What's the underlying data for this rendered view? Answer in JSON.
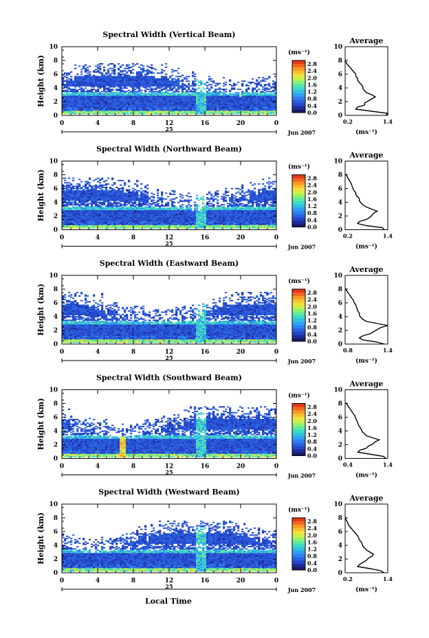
{
  "chart_data": {
    "type": "heatmap",
    "x_axis": {
      "range": [
        0,
        24
      ],
      "ticks": [
        "0",
        "4",
        "8",
        "12",
        "16",
        "20",
        "0"
      ],
      "day_label": "25",
      "date_label": "Jun 2007",
      "label": "Local Time"
    },
    "y_axis": {
      "label": "Height (km)",
      "range": [
        0,
        10
      ],
      "ticks": [
        "0",
        "2",
        "4",
        "6",
        "8",
        "10"
      ]
    },
    "colorbar": {
      "unit": "(ms⁻¹)",
      "ticks": [
        "0.0",
        "0.4",
        "0.8",
        "1.2",
        "1.6",
        "2.0",
        "2.4",
        "2.8"
      ],
      "range": [
        0,
        3.0
      ]
    },
    "average_profile": {
      "title": "Average",
      "xlabel": "(ms⁻¹)",
      "yticks": [
        "0",
        "2",
        "4",
        "6",
        "8",
        "10"
      ]
    },
    "panels": [
      {
        "title": "Spectral Width (Vertical Beam)",
        "profile_xticks": [
          "0.2",
          "1.4"
        ],
        "profile_xlim": [
          0.2,
          1.4
        ],
        "profile": [
          [
            0.0,
            1.35
          ],
          [
            0.3,
            1.4
          ],
          [
            0.6,
            0.95
          ],
          [
            0.9,
            0.5
          ],
          [
            1.2,
            0.55
          ],
          [
            1.5,
            0.75
          ],
          [
            1.8,
            0.75
          ],
          [
            2.1,
            0.85
          ],
          [
            2.4,
            0.95
          ],
          [
            2.7,
            1.05
          ],
          [
            3.0,
            0.95
          ],
          [
            3.3,
            0.8
          ],
          [
            3.6,
            0.75
          ],
          [
            3.9,
            0.7
          ],
          [
            4.2,
            0.7
          ],
          [
            4.5,
            0.65
          ],
          [
            4.8,
            0.6
          ],
          [
            5.1,
            0.55
          ],
          [
            5.4,
            0.55
          ],
          [
            5.7,
            0.5
          ],
          [
            6.0,
            0.5
          ],
          [
            6.3,
            0.45
          ],
          [
            6.6,
            0.4
          ],
          [
            6.9,
            0.35
          ],
          [
            7.2,
            0.3
          ],
          [
            7.5,
            0.25
          ],
          [
            7.8,
            0.22
          ],
          [
            8.1,
            0.2
          ]
        ]
      },
      {
        "title": "Spectral Width (Northward Beam)",
        "profile_xticks": [
          "0.2",
          "1.4"
        ],
        "profile_xlim": [
          0.2,
          1.4
        ],
        "profile": [
          [
            0.0,
            1.3
          ],
          [
            0.3,
            1.25
          ],
          [
            0.6,
            0.8
          ],
          [
            0.9,
            0.55
          ],
          [
            1.2,
            0.6
          ],
          [
            1.5,
            0.8
          ],
          [
            1.8,
            0.9
          ],
          [
            2.1,
            0.95
          ],
          [
            2.4,
            1.0
          ],
          [
            2.7,
            1.1
          ],
          [
            3.0,
            0.95
          ],
          [
            3.3,
            0.8
          ],
          [
            3.6,
            0.7
          ],
          [
            3.9,
            0.65
          ],
          [
            4.2,
            0.6
          ],
          [
            4.5,
            0.6
          ],
          [
            4.8,
            0.55
          ],
          [
            5.1,
            0.5
          ],
          [
            5.4,
            0.5
          ],
          [
            5.7,
            0.45
          ],
          [
            6.0,
            0.42
          ],
          [
            6.3,
            0.4
          ],
          [
            6.6,
            0.38
          ],
          [
            6.9,
            0.35
          ],
          [
            7.2,
            0.32
          ],
          [
            7.5,
            0.28
          ],
          [
            7.8,
            0.25
          ],
          [
            8.1,
            0.22
          ]
        ]
      },
      {
        "title": "Spectral Width (Eastward Beam)",
        "profile_xticks": [
          "0.8",
          "1.4"
        ],
        "profile_xlim": [
          0.8,
          1.4
        ],
        "profile": [
          [
            0.0,
            1.35
          ],
          [
            0.3,
            1.25
          ],
          [
            0.6,
            1.05
          ],
          [
            0.9,
            1.0
          ],
          [
            1.2,
            1.05
          ],
          [
            1.5,
            1.15
          ],
          [
            1.8,
            1.2
          ],
          [
            2.1,
            1.25
          ],
          [
            2.4,
            1.3
          ],
          [
            2.7,
            1.4
          ],
          [
            3.0,
            1.25
          ],
          [
            3.3,
            1.1
          ],
          [
            3.6,
            1.05
          ],
          [
            3.9,
            1.02
          ],
          [
            4.2,
            1.0
          ],
          [
            4.5,
            1.0
          ],
          [
            4.8,
            0.98
          ],
          [
            5.1,
            0.97
          ],
          [
            5.4,
            0.96
          ],
          [
            5.7,
            0.95
          ],
          [
            6.0,
            0.93
          ],
          [
            6.3,
            0.92
          ],
          [
            6.6,
            0.9
          ],
          [
            6.9,
            0.88
          ],
          [
            7.2,
            0.86
          ],
          [
            7.5,
            0.84
          ],
          [
            7.8,
            0.82
          ],
          [
            8.1,
            0.81
          ]
        ]
      },
      {
        "title": "Spectral Width (Southward Beam)",
        "profile_xticks": [
          "0.4",
          "1.4"
        ],
        "profile_xlim": [
          0.4,
          1.4
        ],
        "profile": [
          [
            0.0,
            1.35
          ],
          [
            0.3,
            1.3
          ],
          [
            0.6,
            1.0
          ],
          [
            0.9,
            0.7
          ],
          [
            1.2,
            0.75
          ],
          [
            1.5,
            0.9
          ],
          [
            1.8,
            0.95
          ],
          [
            2.1,
            1.05
          ],
          [
            2.4,
            1.1
          ],
          [
            2.7,
            1.2
          ],
          [
            3.0,
            1.05
          ],
          [
            3.3,
            0.9
          ],
          [
            3.6,
            0.85
          ],
          [
            3.9,
            0.8
          ],
          [
            4.2,
            0.78
          ],
          [
            4.5,
            0.75
          ],
          [
            4.8,
            0.72
          ],
          [
            5.1,
            0.7
          ],
          [
            5.4,
            0.68
          ],
          [
            5.7,
            0.66
          ],
          [
            6.0,
            0.64
          ],
          [
            6.3,
            0.62
          ],
          [
            6.6,
            0.58
          ],
          [
            6.9,
            0.55
          ],
          [
            7.2,
            0.52
          ],
          [
            7.5,
            0.48
          ],
          [
            7.8,
            0.45
          ],
          [
            8.1,
            0.42
          ]
        ]
      },
      {
        "title": "Spectral Width (Westward Beam)",
        "profile_xticks": [
          "0.2",
          "1.4"
        ],
        "profile_xlim": [
          0.2,
          1.4
        ],
        "profile": [
          [
            0.0,
            1.3
          ],
          [
            0.3,
            1.2
          ],
          [
            0.6,
            0.9
          ],
          [
            0.9,
            0.55
          ],
          [
            1.2,
            0.6
          ],
          [
            1.5,
            0.7
          ],
          [
            1.8,
            0.8
          ],
          [
            2.1,
            0.85
          ],
          [
            2.4,
            0.95
          ],
          [
            2.7,
            1.0
          ],
          [
            3.0,
            0.9
          ],
          [
            3.3,
            0.8
          ],
          [
            3.6,
            0.75
          ],
          [
            3.9,
            0.7
          ],
          [
            4.2,
            0.68
          ],
          [
            4.5,
            0.65
          ],
          [
            4.8,
            0.6
          ],
          [
            5.1,
            0.58
          ],
          [
            5.4,
            0.55
          ],
          [
            5.7,
            0.5
          ],
          [
            6.0,
            0.45
          ],
          [
            6.3,
            0.4
          ],
          [
            6.6,
            0.35
          ],
          [
            6.9,
            0.3
          ],
          [
            7.2,
            0.28
          ],
          [
            7.5,
            0.25
          ],
          [
            7.8,
            0.22
          ],
          [
            8.1,
            0.2
          ]
        ]
      }
    ],
    "colormap": [
      "#1a1a66",
      "#1f2d9c",
      "#2546c8",
      "#2b62e0",
      "#2f80f0",
      "#2fa0f0",
      "#33c0e0",
      "#40d8c8",
      "#60e8a0",
      "#90f070",
      "#c8f050",
      "#f0e040",
      "#f8c030",
      "#f89828",
      "#f06820",
      "#e03a1a"
    ]
  }
}
